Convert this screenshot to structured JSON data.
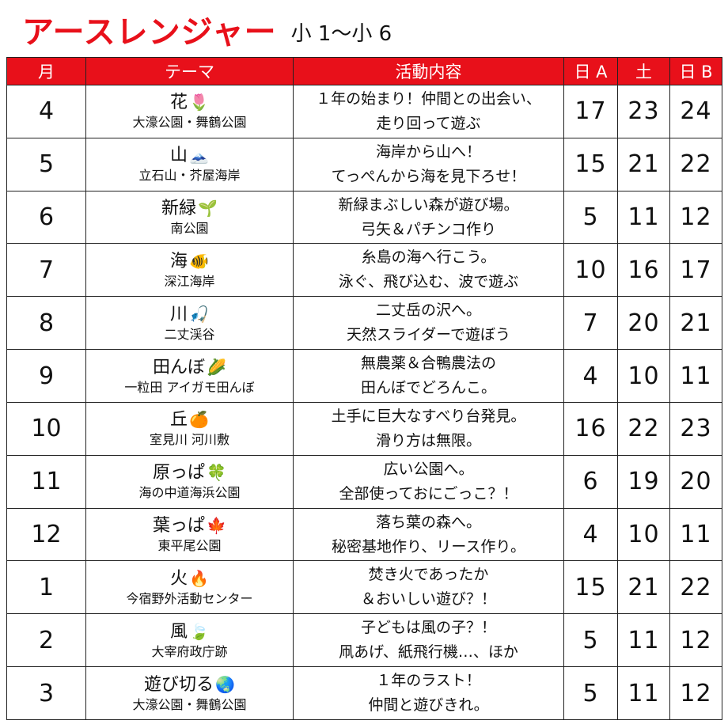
{
  "header": {
    "title": "アースレンジャー",
    "subtitle": "小 1〜小 6"
  },
  "table": {
    "columns": [
      "月",
      "テーマ",
      "活動内容",
      "日 A",
      "土",
      "日 B"
    ],
    "rows": [
      {
        "month": "4",
        "theme": "花",
        "emoji": "🌷",
        "place": "大濠公園・舞鶴公園",
        "activity1": "１年の始まり！仲間との出会い、",
        "activity2": "走り回って遊ぶ",
        "dayA": "17",
        "sat": "23",
        "dayB": "24"
      },
      {
        "month": "5",
        "theme": "山",
        "emoji": "🗻",
        "place": "立石山・芥屋海岸",
        "activity1": "海岸から山へ！",
        "activity2": "てっぺんから海を見下ろせ！",
        "dayA": "15",
        "sat": "21",
        "dayB": "22"
      },
      {
        "month": "6",
        "theme": "新緑",
        "emoji": "🌱",
        "place": "南公園",
        "activity1": "新緑まぶしい森が遊び場。",
        "activity2": "弓矢＆パチンコ作り",
        "dayA": "5",
        "sat": "11",
        "dayB": "12"
      },
      {
        "month": "7",
        "theme": "海",
        "emoji": "🐠",
        "place": "深江海岸",
        "activity1": "糸島の海へ行こう。",
        "activity2": "泳ぐ、飛び込む、波で遊ぶ",
        "dayA": "10",
        "sat": "16",
        "dayB": "17"
      },
      {
        "month": "8",
        "theme": "川",
        "emoji": "🎣",
        "place": "二丈渓谷",
        "activity1": "二丈岳の沢へ。",
        "activity2": "天然スライダーで遊ぼう",
        "dayA": "7",
        "sat": "20",
        "dayB": "21"
      },
      {
        "month": "9",
        "theme": "田んぼ",
        "emoji": "🌽",
        "place": "一粒田 アイガモ田んぼ",
        "activity1": "無農薬＆合鴨農法の",
        "activity2": "田んぼでどろんこ。",
        "dayA": "4",
        "sat": "10",
        "dayB": "11"
      },
      {
        "month": "10",
        "theme": "丘",
        "emoji": "🍊",
        "place": "室見川 河川敷",
        "activity1": "土手に巨大なすべり台発見。",
        "activity2": "滑り方は無限。",
        "dayA": "16",
        "sat": "22",
        "dayB": "23"
      },
      {
        "month": "11",
        "theme": "原っぱ",
        "emoji": "🍀",
        "place": "海の中道海浜公園",
        "activity1": "広い公園へ。",
        "activity2": "全部使っておにごっこ？！",
        "dayA": "6",
        "sat": "19",
        "dayB": "20"
      },
      {
        "month": "12",
        "theme": "葉っぱ",
        "emoji": "🍁",
        "place": "東平尾公園",
        "activity1": "落ち葉の森へ。",
        "activity2": "秘密基地作り、リース作り。",
        "dayA": "4",
        "sat": "10",
        "dayB": "11"
      },
      {
        "month": "1",
        "theme": "火",
        "emoji": "🔥",
        "place": "今宿野外活動センター",
        "activity1": "焚き火であったか",
        "activity2": "＆おいしい遊び？！",
        "dayA": "15",
        "sat": "21",
        "dayB": "22"
      },
      {
        "month": "2",
        "theme": "風",
        "emoji": "🍃",
        "place": "大宰府政庁跡",
        "activity1": "子どもは風の子？！",
        "activity2": "凧あげ、紙飛行機…、ほか",
        "dayA": "5",
        "sat": "11",
        "dayB": "12"
      },
      {
        "month": "3",
        "theme": "遊び切る",
        "emoji": "🌏",
        "place": "大濠公園・舞鶴公園",
        "activity1": "１年のラスト！",
        "activity2": "仲間と遊びきれ。",
        "dayA": "5",
        "sat": "11",
        "dayB": "12"
      }
    ]
  }
}
